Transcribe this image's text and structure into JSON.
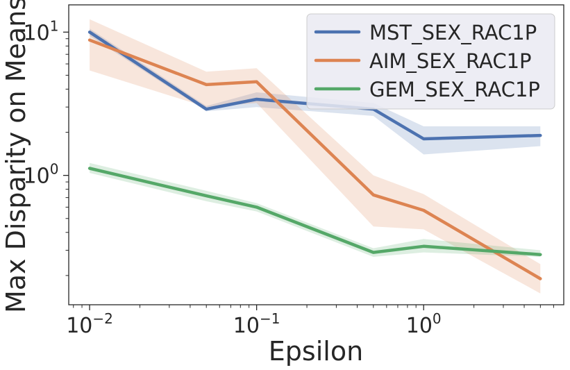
{
  "chart_data": {
    "type": "line",
    "xscale": "log",
    "yscale": "log",
    "xlabel": "Epsilon",
    "ylabel": "Max Disparity on Means",
    "xlim": [
      0.0075,
      6.9
    ],
    "ylim": [
      0.125,
      15.5
    ],
    "x": [
      0.01,
      0.05,
      0.1,
      0.5,
      1,
      5
    ],
    "x_major_ticks": [
      0.01,
      0.1,
      1
    ],
    "x_tick_labels": [
      {
        "base": "10",
        "exp": "−2"
      },
      {
        "base": "10",
        "exp": "−1"
      },
      {
        "base": "10",
        "exp": "0"
      }
    ],
    "y_major_ticks": [
      1,
      10
    ],
    "y_tick_labels": [
      {
        "base": "10",
        "exp": "0"
      },
      {
        "base": "10",
        "exp": "1"
      }
    ],
    "legend_position": "top-right",
    "series": [
      {
        "name": "MST_SEX_RAC1P",
        "color": "#4c72b0",
        "values": [
          10.0,
          2.9,
          3.4,
          2.9,
          1.8,
          1.9
        ],
        "lower": [
          9.4,
          2.8,
          3.0,
          2.6,
          1.4,
          1.6
        ],
        "upper": [
          10.6,
          3.05,
          3.8,
          3.2,
          2.2,
          2.2
        ]
      },
      {
        "name": "AIM_SEX_RAC1P",
        "color": "#dd8452",
        "values": [
          8.8,
          4.3,
          4.5,
          0.73,
          0.57,
          0.19
        ],
        "lower": [
          5.4,
          3.0,
          3.2,
          0.44,
          0.42,
          0.15
        ],
        "upper": [
          12.3,
          5.3,
          5.6,
          1.0,
          0.74,
          0.24
        ]
      },
      {
        "name": "GEM_SEX_RAC1P",
        "color": "#55a868",
        "values": [
          1.12,
          0.72,
          0.6,
          0.29,
          0.32,
          0.28
        ],
        "lower": [
          1.04,
          0.66,
          0.56,
          0.27,
          0.29,
          0.27
        ],
        "upper": [
          1.22,
          0.78,
          0.64,
          0.31,
          0.36,
          0.3
        ]
      }
    ]
  }
}
